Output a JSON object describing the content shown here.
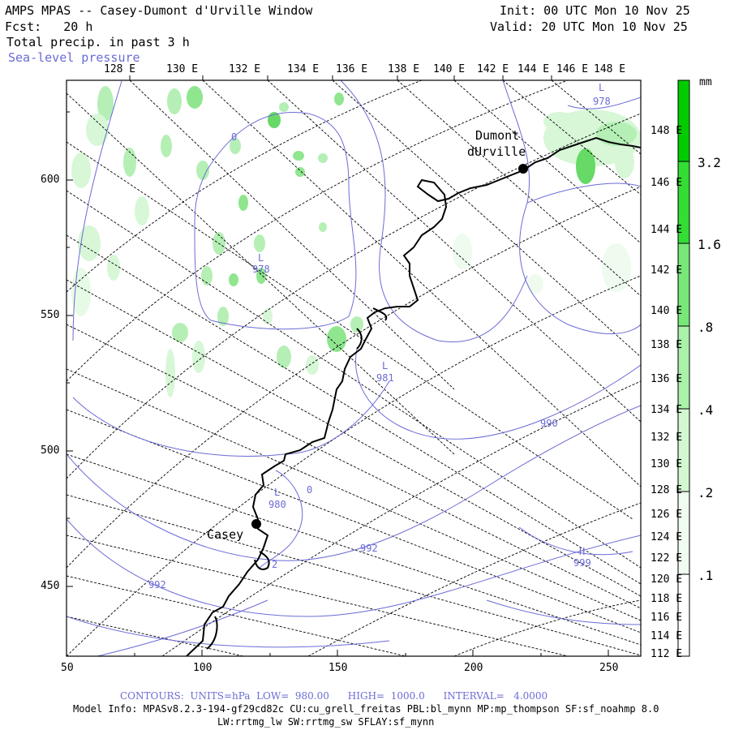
{
  "header": {
    "title": "AMPS MPAS -- Casey-Dumont d'Urville Window",
    "fcst": "Fcst:   20 h",
    "field": "Total precip. in past 3 h",
    "overlay": "Sea-level pressure",
    "init": "Init: 00 UTC Mon 10 Nov 25",
    "valid": "Valid: 20 UTC Mon 10 Nov 25"
  },
  "top_lon_labels": [
    "128 E",
    "130 E",
    "132 E",
    "134 E",
    "136 E",
    "138 E",
    "140 E",
    "142 E",
    "144 E",
    "146 E",
    "148 E"
  ],
  "right_lon_labels": [
    "148 E",
    "146 E",
    "144 E",
    "142 E",
    "140 E",
    "138 E",
    "136 E",
    "134 E",
    "132 E",
    "130 E",
    "128 E",
    "126 E",
    "124 E",
    "122 E",
    "120 E",
    "118 E",
    "116 E",
    "114 E",
    "112 E"
  ],
  "x_axis_labels": [
    "50",
    "100",
    "150",
    "200",
    "250"
  ],
  "y_axis_labels": [
    "600",
    "550",
    "500",
    "450"
  ],
  "colorbar": {
    "unit": "mm",
    "labels": [
      "3.2",
      "1.6",
      ".8",
      ".4",
      ".2",
      ".1"
    ],
    "colors": [
      "#00cc00",
      "#33dd33",
      "#66e866",
      "#99f099",
      "#ccf7cc",
      "#eefbee"
    ]
  },
  "stations": [
    {
      "name_lines": [
        "Dumont",
        "dUrville"
      ]
    },
    {
      "name_lines": [
        "Casey"
      ]
    }
  ],
  "pressure_labels": [
    {
      "kind": "L",
      "value": "978",
      "where": "top-right"
    },
    {
      "kind": "L",
      "value": "978",
      "where": "center-left"
    },
    {
      "kind": "L",
      "value": "981",
      "where": "center"
    },
    {
      "kind": "L",
      "value": "980",
      "where": "near-casey"
    },
    {
      "kind": "H",
      "value": "999",
      "where": "lower-right"
    },
    {
      "kind": "",
      "value": "990",
      "where": "right-mid"
    },
    {
      "kind": "",
      "value": "992",
      "where": "lower-center"
    },
    {
      "kind": "",
      "value": "992",
      "where": "lower-left"
    }
  ],
  "footer": {
    "contours": "CONTOURS:  UNITS=hPa  LOW=  980.00      HIGH=  1000.0      INTERVAL=   4.0000",
    "model_info": "Model Info: MPASv8.2.3-194-gf29cd82c CU:cu_grell_freitas PBL:bl_mynn MP:mp_thompson SF:sf_noahmp 8.0",
    "model_info2": "LW:rrtmg_lw SW:rrtmg_sw SFLAY:sf_mynn"
  },
  "colors": {
    "contour": "#6b6bd6",
    "coast": "#000000",
    "precip": "#33cc33"
  }
}
